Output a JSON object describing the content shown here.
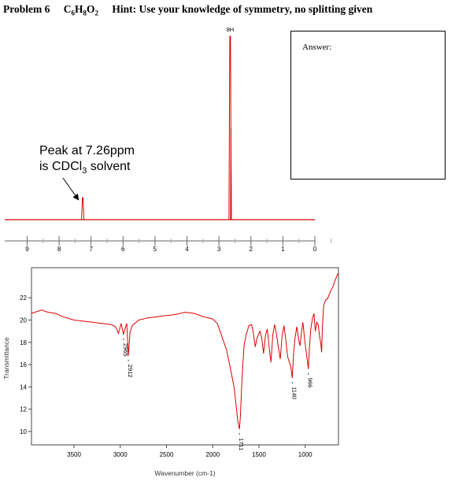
{
  "header": {
    "problem": "Problem 6",
    "formula": "C6H8O2",
    "hint": "Hint: Use your knowledge of symmetry, no splitting given"
  },
  "answer_box": {
    "label": "Answer:"
  },
  "chart_data": [
    {
      "type": "line",
      "chart": "1H NMR spectrum",
      "x_axis_reversed": true,
      "xlim": [
        9.7,
        0.0
      ],
      "ticks": [
        9,
        8,
        7,
        6,
        5,
        4,
        3,
        2,
        1,
        0
      ],
      "tick_labels": [
        "9",
        "8",
        "7",
        "6",
        "5",
        "4",
        "3",
        "2",
        "1",
        "0"
      ],
      "peaks": [
        {
          "ppm": 7.26,
          "rel_height": 0.12,
          "label": ""
        },
        {
          "ppm": 2.65,
          "rel_height": 1.0,
          "label": "8H"
        }
      ],
      "annotation": {
        "lines": [
          "Peak at 7.26ppm",
          "is CDCl3 solvent"
        ],
        "points_to_ppm": 7.26
      },
      "grid": false,
      "color": "#dd0000"
    },
    {
      "type": "line",
      "chart": "IR spectrum",
      "xlabel": "Wavenumber (cm-1)",
      "ylabel": "Transmittance",
      "x_axis_reversed": true,
      "xlim": [
        3960,
        640
      ],
      "ylim": [
        8.8,
        24.7
      ],
      "x_ticks": [
        3500,
        3000,
        2500,
        2000,
        1500,
        1000
      ],
      "y_ticks": [
        10,
        12,
        14,
        16,
        18,
        20,
        22
      ],
      "points": [
        [
          3960,
          20.6
        ],
        [
          3850,
          20.9
        ],
        [
          3780,
          20.7
        ],
        [
          3700,
          20.6
        ],
        [
          3620,
          20.3
        ],
        [
          3500,
          20.0
        ],
        [
          3400,
          19.9
        ],
        [
          3300,
          19.8
        ],
        [
          3200,
          19.7
        ],
        [
          3100,
          19.6
        ],
        [
          3050,
          19.4
        ],
        [
          3020,
          18.8
        ],
        [
          2990,
          19.7
        ],
        [
          2965,
          18.7
        ],
        [
          2945,
          19.3
        ],
        [
          2930,
          19.7
        ],
        [
          2912,
          16.8
        ],
        [
          2895,
          18.9
        ],
        [
          2870,
          19.5
        ],
        [
          2800,
          20.0
        ],
        [
          2700,
          20.2
        ],
        [
          2600,
          20.3
        ],
        [
          2500,
          20.4
        ],
        [
          2400,
          20.5
        ],
        [
          2300,
          20.7
        ],
        [
          2200,
          20.6
        ],
        [
          2100,
          20.3
        ],
        [
          2000,
          20.1
        ],
        [
          1950,
          19.7
        ],
        [
          1900,
          18.5
        ],
        [
          1850,
          17.3
        ],
        [
          1800,
          15.3
        ],
        [
          1770,
          14.0
        ],
        [
          1745,
          12.2
        ],
        [
          1730,
          11.0
        ],
        [
          1711,
          10.2
        ],
        [
          1700,
          11.5
        ],
        [
          1690,
          13.6
        ],
        [
          1675,
          15.9
        ],
        [
          1660,
          17.8
        ],
        [
          1640,
          18.6
        ],
        [
          1610,
          19.5
        ],
        [
          1580,
          19.6
        ],
        [
          1560,
          18.8
        ],
        [
          1540,
          17.6
        ],
        [
          1520,
          18.4
        ],
        [
          1490,
          19.0
        ],
        [
          1470,
          18.4
        ],
        [
          1450,
          17.0
        ],
        [
          1430,
          18.6
        ],
        [
          1410,
          19.2
        ],
        [
          1390,
          17.6
        ],
        [
          1370,
          16.2
        ],
        [
          1350,
          18.7
        ],
        [
          1330,
          19.6
        ],
        [
          1310,
          18.7
        ],
        [
          1290,
          17.6
        ],
        [
          1270,
          16.5
        ],
        [
          1250,
          18.5
        ],
        [
          1230,
          19.5
        ],
        [
          1210,
          18.3
        ],
        [
          1190,
          16.7
        ],
        [
          1170,
          16.2
        ],
        [
          1155,
          15.8
        ],
        [
          1140,
          14.8
        ],
        [
          1125,
          17.0
        ],
        [
          1110,
          18.4
        ],
        [
          1090,
          19.4
        ],
        [
          1070,
          18.2
        ],
        [
          1055,
          17.7
        ],
        [
          1040,
          18.9
        ],
        [
          1025,
          19.8
        ],
        [
          1010,
          18.6
        ],
        [
          995,
          17.5
        ],
        [
          975,
          16.3
        ],
        [
          966,
          15.6
        ],
        [
          955,
          17.4
        ],
        [
          940,
          19.2
        ],
        [
          920,
          20.2
        ],
        [
          905,
          20.6
        ],
        [
          890,
          19.0
        ],
        [
          875,
          19.8
        ],
        [
          860,
          19.6
        ],
        [
          845,
          18.6
        ],
        [
          830,
          17.8
        ],
        [
          822,
          17.1
        ],
        [
          814,
          19.4
        ],
        [
          800,
          21.3
        ],
        [
          780,
          21.8
        ],
        [
          760,
          21.9
        ],
        [
          740,
          22.3
        ],
        [
          720,
          22.7
        ],
        [
          700,
          23.0
        ],
        [
          680,
          23.5
        ],
        [
          660,
          23.9
        ],
        [
          645,
          24.2
        ]
      ],
      "peak_labels": [
        {
          "x": 2965,
          "y": 18.7,
          "label": "2965"
        },
        {
          "x": 2912,
          "y": 16.8,
          "label": "2912"
        },
        {
          "x": 1711,
          "y": 10.2,
          "label": "1711"
        },
        {
          "x": 1140,
          "y": 14.8,
          "label": "1140"
        },
        {
          "x": 966,
          "y": 15.6,
          "label": "966"
        }
      ],
      "grid": false,
      "color": "#dd0000"
    }
  ]
}
